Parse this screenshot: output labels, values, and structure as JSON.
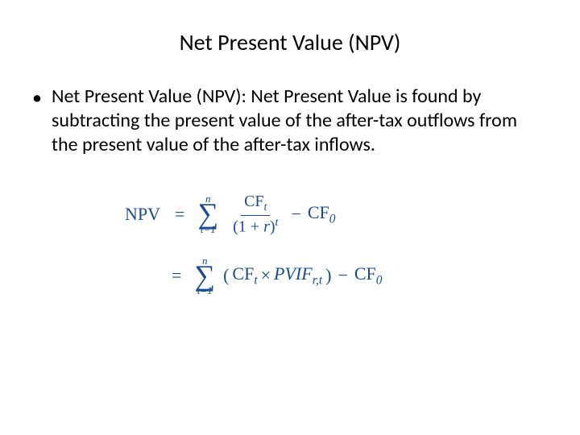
{
  "slide": {
    "title": "Net Present Value (NPV)",
    "bullet_text": "Net Present Value (NPV): Net Present Value is found by subtracting the present value of the after-tax outflows from the present value of the after-tax inflows.",
    "bullet_marker": "•"
  },
  "formula": {
    "label": "NPV",
    "eq": "=",
    "sigma_top": "n",
    "sigma_symbol": "∑",
    "sigma_bottom1": "t=1",
    "sigma_bottom2": "t=1",
    "frac_num": "CF",
    "frac_num_sub": "t",
    "frac_den_left": "(1 + ",
    "frac_den_r": "r",
    "frac_den_right": ")",
    "frac_den_sup": "t",
    "minus": "−",
    "cf0": "CF",
    "cf0_sub": "0",
    "paren_open": "(",
    "cf_t": "CF",
    "cf_t_sub": "t",
    "times": "×",
    "pvif": "PVIF",
    "pvif_sub": "r,t",
    "paren_close": ")",
    "colors": {
      "text": "#000000",
      "formula": "#1a4d8f",
      "background": "#ffffff"
    },
    "fonts": {
      "body_family": "Calibri",
      "formula_family": "Times New Roman",
      "title_size": 28,
      "body_size": 24,
      "formula_size": 22
    }
  }
}
